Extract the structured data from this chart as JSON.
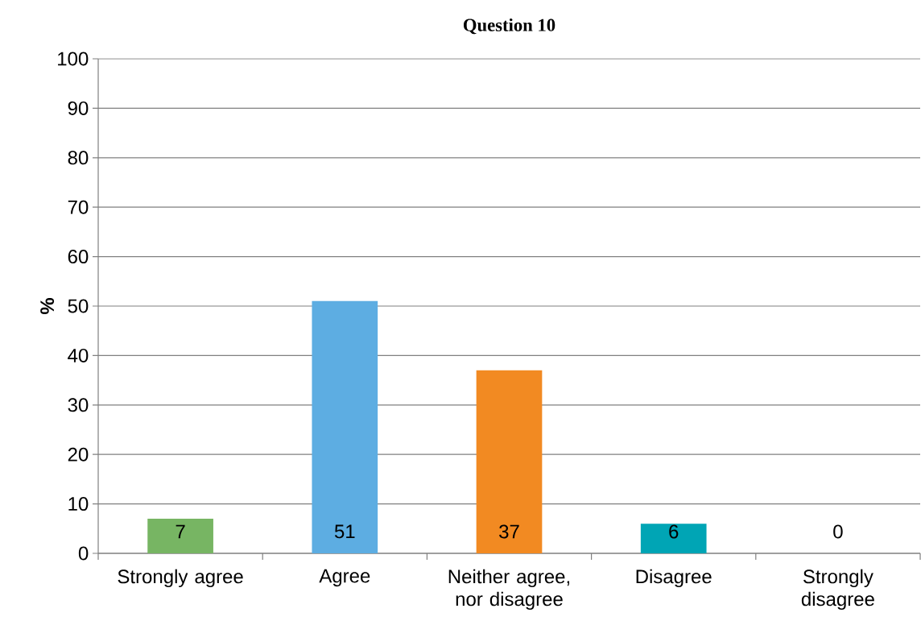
{
  "chart_data": {
    "type": "bar",
    "title": "Question 10",
    "ylabel": "%",
    "categories": [
      "Strongly agree",
      "Agree",
      "Neither agree, nor disagree",
      "Disagree",
      "Strongly disagree"
    ],
    "values": [
      7,
      51,
      37,
      6,
      0
    ],
    "colors": [
      "#77b563",
      "#5dade2",
      "#f28a22",
      "#00a5b5",
      "#4f81bd"
    ],
    "data_labels": true,
    "ylim": [
      0,
      100
    ],
    "yticks": [
      0,
      10,
      20,
      30,
      40,
      50,
      60,
      70,
      80,
      90,
      100
    ],
    "grid": "y"
  }
}
